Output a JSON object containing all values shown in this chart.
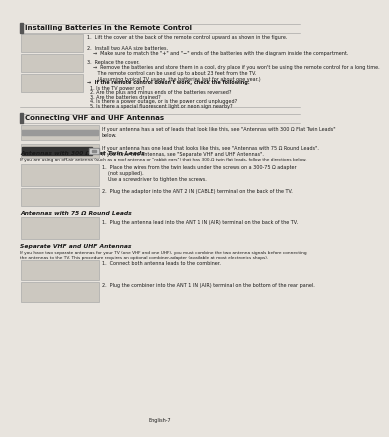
{
  "bg_color": "#e8e4de",
  "text_color": "#1a1a1a",
  "section1_title": "Installing Batteries in the Remote Control",
  "section2_title": "Connecting VHF and UHF Antennas",
  "subsec1_title": "Antennas with 300 Ω Flat Twin Leads",
  "subsec2_title": "Antennas with 75 Ω Round Leads",
  "subsec3_title": "Separate VHF and UHF Antennas",
  "footer": "English-7",
  "sec2_intro1": "If your antenna has a set of leads that look like this, see \"Antennas with 300 Ω Flat Twin Leads\"\nbelow.",
  "sec2_intro2": "If your antenna has one lead that looks like this, see \"Antennas with 75 Ω Round Leads\".\nIf you have two antennas, see \"Separate VHF and UHF Antennas\".",
  "subsec1_intro": "If you are using an off-air antenna (such as a roof antenna or \"rabbit ears\") that has 300-Ω twin flat leads, follow the directions below.",
  "subsec1_step1": "1.  Place the wires from the twin leads under the screws on a 300-75 Ω adapter\n    (not supplied).\n    Use a screwdriver to tighten the screws.",
  "subsec1_step2": "2.  Plug the adaptor into the ANT 2 IN (CABLE) terminal on the back of the TV.",
  "subsec2_step1": "1.  Plug the antenna lead into the ANT 1 IN (AIR) terminal on the back of the TV.",
  "subsec3_intro": "If you have two separate antennas for your TV (one VHF and one UHF), you must combine the two antenna signals before connecting\nthe antennas to the TV. This procedure requires an optional combiner-adapter (available at most electronics shops).",
  "subsec3_step1": "1.  Connect both antenna leads to the combiner.",
  "subsec3_step2": "2.  Plug the combiner into the ANT 1 IN (AIR) terminal on the bottom of the rear panel.",
  "s1_item1": "1.  Lift the cover at the back of the remote control upward as shown in the figure.",
  "s1_item2": "2.  Install two AAA size batteries.",
  "s1_item2b": "    →  Make sure to match the \"+\" and \"−\" ends of the batteries with the diagram inside the compartment.",
  "s1_item3": "3.  Replace the cover.",
  "s1_item3b": "    →  Remove the batteries and store them in a cool, dry place if you won't be using the remote control for a long time.\n       The remote control can be used up to about 23 feet from the TV.\n       (Assuming typical TV usage, the batteries last for about one year.)",
  "s1_check_title": "→  If the remote control doesn't work, check the following:",
  "s1_checks": [
    "1. Is the TV power on?",
    "2. Are the plus and minus ends of the batteries reversed?",
    "3. Are the batteries drained?",
    "4. Is there a power outage, or is the power cord unplugged?",
    "5. Is there a special fluorescent light or neon sign nearby?"
  ]
}
